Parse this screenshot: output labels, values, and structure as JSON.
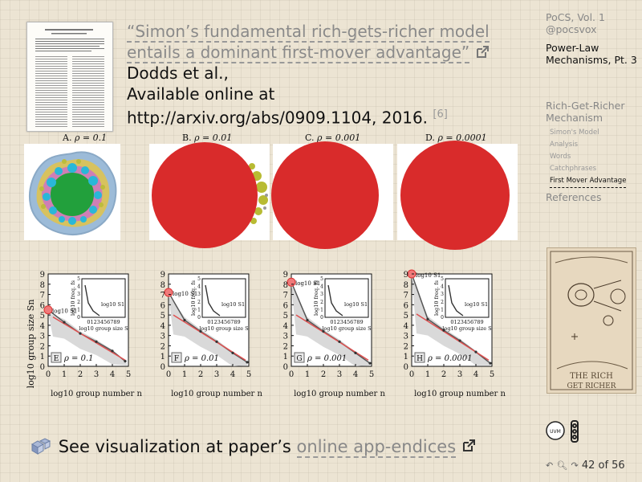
{
  "citation": {
    "quote_line1": "“Simon’s fundamental rich-gets-richer model",
    "quote_line2": "entails a dominant first-mover advantage”",
    "author": "Dodds et al.,",
    "available": "Available online at",
    "url": "http://arxiv.org/abs/0909.1104, 2016.",
    "ref": "[6]"
  },
  "nav": {
    "course": "PoCS, Vol. 1",
    "handle": "@pocsvox",
    "lecture": "Power-Law Mechanisms, Pt. 3",
    "section": "Rich-Get-Richer Mechanism",
    "subsections": [
      "Simon's Model",
      "Analysis",
      "Words",
      "Catchphrases",
      "First Mover Advantage"
    ],
    "current_subsection": "First Mover Advantage",
    "references": "References"
  },
  "figure": {
    "top_panels": [
      {
        "label": "A.",
        "rho": "ρ = 0.1"
      },
      {
        "label": "B.",
        "rho": "ρ = 0.01"
      },
      {
        "label": "C.",
        "rho": "ρ = 0.001"
      },
      {
        "label": "D.",
        "rho": "ρ = 0.0001"
      }
    ],
    "bottom_panels": [
      {
        "letter": "E",
        "rho": "ρ = 0.1",
        "s1_label": "log10 S1"
      },
      {
        "letter": "F",
        "rho": "ρ = 0.01",
        "s1_label": "log10 S1"
      },
      {
        "letter": "G",
        "rho": "ρ = 0.001",
        "s1_label": "log10 S1"
      },
      {
        "letter": "H",
        "rho": "ρ = 0.0001",
        "s1_label": "log10 S1"
      }
    ],
    "ylabel": "log10 group size Sn",
    "xlabel": "log10 group number n",
    "inset_ylabel": "log10 freq. fs",
    "inset_xlabel": "log10 group size S",
    "y_ticks": [
      "0",
      "1",
      "2",
      "3",
      "4",
      "5",
      "6",
      "7",
      "8",
      "9"
    ],
    "x_ticks": [
      "0",
      "1",
      "2",
      "3",
      "4",
      "5"
    ],
    "inset_y_ticks": [
      "0",
      "1",
      "2",
      "3",
      "4",
      "5"
    ],
    "inset_x_ticks": [
      "0",
      "1",
      "2",
      "3",
      "4",
      "5",
      "6",
      "7",
      "8",
      "9"
    ]
  },
  "chart_data": [
    {
      "type": "scatter",
      "title": "ρ = 0.1",
      "xlabel": "log10 group number n",
      "ylabel": "log10 group size Sn",
      "xlim": [
        0,
        5
      ],
      "ylim": [
        0,
        9
      ],
      "x": [
        0,
        1,
        2,
        3,
        4,
        4.8
      ],
      "y": [
        5.5,
        4.3,
        3.2,
        2.4,
        1.5,
        0.5
      ]
    },
    {
      "type": "scatter",
      "title": "ρ = 0.01",
      "xlabel": "log10 group number n",
      "ylabel": "log10 group size Sn",
      "xlim": [
        0,
        5
      ],
      "ylim": [
        0,
        9
      ],
      "x": [
        0,
        1,
        2,
        3,
        4,
        4.9
      ],
      "y": [
        7.2,
        4.5,
        3.4,
        2.4,
        1.3,
        0.4
      ]
    },
    {
      "type": "scatter",
      "title": "ρ = 0.001",
      "xlabel": "log10 group number n",
      "ylabel": "log10 group size Sn",
      "xlim": [
        0,
        5
      ],
      "ylim": [
        0,
        9
      ],
      "x": [
        0,
        1,
        2,
        3,
        4,
        4.9
      ],
      "y": [
        8.2,
        4.5,
        3.4,
        2.4,
        1.3,
        0.3
      ]
    },
    {
      "type": "scatter",
      "title": "ρ = 0.0001",
      "xlabel": "log10 group number n",
      "ylabel": "log10 group size Sn",
      "xlim": [
        0,
        5
      ],
      "ylim": [
        0,
        9
      ],
      "x": [
        0,
        1,
        2,
        3,
        4,
        4.9
      ],
      "y": [
        9.0,
        4.6,
        3.5,
        2.5,
        1.4,
        0.3
      ]
    }
  ],
  "cartoon": {
    "caption_line1": "THE RICH",
    "caption_line2": "GET RICHER"
  },
  "bottom": {
    "prefix": "See visualization at paper’s ",
    "link": "online app-endices"
  },
  "pager": {
    "text": "42 of 56"
  },
  "colors": {
    "accent_red": "#d92b2b",
    "nav_gray": "#888888",
    "green": "#22a03c"
  }
}
